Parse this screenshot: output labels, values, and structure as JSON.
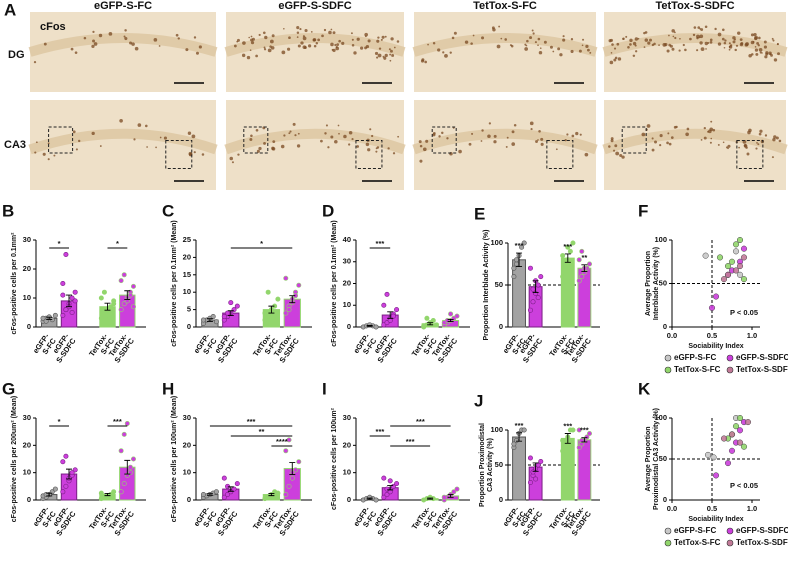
{
  "figure": {
    "panel": "A",
    "columns": [
      "eGFP-S-FC",
      "eGFP-S-SDFC",
      "TetTox-S-FC",
      "TetTox-S-SDFC"
    ],
    "rows": [
      "DG",
      "CA3"
    ],
    "stain": "cFos"
  },
  "chart_data": [
    {
      "type": "bar",
      "panel": "B",
      "ylabel": "cFos-positive cells per 0.1mm²",
      "categories": [
        "eGFP-\nS-FC",
        "eGFP-\nS-SDFC",
        "TetTox-\nS-FC",
        "TetTox-\nS-SDFC"
      ],
      "colors": [
        "#a3a3a3",
        "#cc3fdc",
        "#92d66c",
        "#cc3fdc"
      ],
      "edge_colors": [
        "#555555",
        "#7a1f85",
        "#92d66c",
        "#92d66c"
      ],
      "values": [
        3,
        9,
        7,
        11
      ],
      "errors": [
        0.4,
        2,
        1.2,
        1.5
      ],
      "points": [
        [
          2,
          3,
          3.5,
          2.5,
          4,
          3,
          2
        ],
        [
          4,
          6,
          8,
          10,
          12,
          15,
          25,
          7,
          5,
          9,
          11,
          6
        ],
        [
          3,
          5,
          6,
          7,
          8,
          10,
          12,
          4,
          6,
          9
        ],
        [
          6,
          8,
          10,
          12,
          14,
          16,
          18,
          9,
          11,
          7
        ]
      ],
      "ylim": [
        0,
        30
      ],
      "yticks": [
        0,
        10,
        20,
        30
      ],
      "significance": [
        {
          "pair": [
            0,
            1
          ],
          "label": "*"
        },
        {
          "pair": [
            2,
            3
          ],
          "label": "*"
        }
      ]
    },
    {
      "type": "bar",
      "panel": "C",
      "ylabel": "cFos-positive cells per 0.1mm² (Mean)",
      "categories": [
        "eGFP-\nS-FC",
        "eGFP-\nS-SDFC",
        "TetTox-\nS-FC",
        "TetTox-\nS-SDFC"
      ],
      "colors": [
        "#a3a3a3",
        "#cc3fdc",
        "#92d66c",
        "#cc3fdc"
      ],
      "edge_colors": [
        "#555555",
        "#7a1f85",
        "#92d66c",
        "#92d66c"
      ],
      "values": [
        2,
        4,
        5,
        8
      ],
      "errors": [
        0.4,
        0.7,
        1,
        1
      ],
      "points": [
        [
          1,
          2,
          2.5,
          3,
          1.5,
          2
        ],
        [
          2,
          3,
          4,
          5,
          6,
          3,
          4,
          7
        ],
        [
          2,
          3,
          5,
          6,
          8,
          4,
          10
        ],
        [
          4,
          6,
          8,
          10,
          12,
          14,
          5,
          7,
          9
        ]
      ],
      "ylim": [
        0,
        25
      ],
      "yticks": [
        0,
        5,
        10,
        15,
        20,
        25
      ],
      "significance": [
        {
          "pair": [
            1,
            3
          ],
          "label": "*"
        }
      ]
    },
    {
      "type": "bar",
      "panel": "D",
      "ylabel": "cFos-positive cells per 0.1mm² (Mean)",
      "categories": [
        "eGFP-\nS-FC",
        "eGFP-\nS-SDFC",
        "TetTox-\nS-FC",
        "TetTox-\nS-SDFC"
      ],
      "colors": [
        "#a3a3a3",
        "#cc3fdc",
        "#92d66c",
        "#cc3fdc"
      ],
      "edge_colors": [
        "#555555",
        "#7a1f85",
        "#92d66c",
        "#92d66c"
      ],
      "values": [
        0.5,
        5.5,
        1.5,
        3
      ],
      "errors": [
        0.2,
        1.5,
        0.5,
        0.5
      ],
      "points": [
        [
          0,
          0.5,
          1,
          0.5,
          0
        ],
        [
          1,
          2,
          4,
          6,
          8,
          10,
          15,
          3,
          5
        ],
        [
          0,
          1,
          2,
          3,
          1,
          0.5,
          4
        ],
        [
          1,
          2,
          3,
          4,
          5,
          2,
          3,
          6
        ]
      ],
      "ylim": [
        0,
        40
      ],
      "yticks": [
        0,
        10,
        20,
        30,
        40
      ],
      "significance": [
        {
          "pair": [
            0,
            1
          ],
          "label": "***"
        }
      ]
    },
    {
      "type": "bar",
      "panel": "E",
      "ylabel": "Proportion Interblade Activity (%)",
      "categories": [
        "eGFP-\nS-FC",
        "eGFP-\nS-SDFC",
        "TetTox-\nS-FC",
        "TetTox-\nS-SDFC"
      ],
      "colors": [
        "#a3a3a3",
        "#cc3fdc",
        "#92d66c",
        "#cc3fdc"
      ],
      "edge_colors": [
        "#555555",
        "#7a1f85",
        "#92d66c",
        "#92d66c"
      ],
      "values": [
        80,
        48,
        82,
        70
      ],
      "errors": [
        8,
        7,
        5,
        4
      ],
      "points": [
        [
          60,
          75,
          85,
          95,
          100,
          70,
          80
        ],
        [
          20,
          30,
          40,
          50,
          60,
          70,
          45,
          55,
          35
        ],
        [
          60,
          70,
          80,
          90,
          100,
          85,
          75,
          95
        ],
        [
          55,
          60,
          65,
          70,
          75,
          80,
          90,
          70
        ]
      ],
      "ylim": [
        0,
        100
      ],
      "yticks": [
        0,
        50,
        100
      ],
      "hline": 50,
      "star_labels": [
        "***",
        null,
        "***",
        "**"
      ]
    },
    {
      "type": "scatter",
      "panel": "F",
      "ylabel": "Average Proportion\nInterblade Activity (%)",
      "xlabel": "Sociability Index",
      "annotation": "P < 0.05",
      "xlim": [
        0,
        1.1
      ],
      "xticks": [
        {
          "value": 0,
          "label": "0.0"
        },
        {
          "value": 0.5,
          "label": "0.5"
        },
        {
          "value": 1,
          "label": "1.0"
        }
      ],
      "ylim": [
        0,
        100
      ],
      "yticks": [
        0,
        50,
        100
      ],
      "vline": 0.5,
      "hline": 50,
      "series": [
        {
          "name": "eGFP-S-FC",
          "color": "#c8c8c8",
          "x": [
            0.42,
            0.8,
            0.85
          ],
          "y": [
            82,
            87,
            60
          ]
        },
        {
          "name": "eGFP-S-SDFC",
          "color": "#cc3fdc",
          "x": [
            0.5,
            0.55,
            0.7,
            0.75,
            0.85,
            0.9
          ],
          "y": [
            22,
            35,
            60,
            65,
            75,
            90
          ]
        },
        {
          "name": "TetTox-S-FC",
          "color": "#92d66c",
          "x": [
            0.7,
            0.75,
            0.8,
            0.85,
            0.9,
            0.6
          ],
          "y": [
            70,
            75,
            95,
            100,
            55,
            80
          ]
        },
        {
          "name": "TetTox-S-SDFC",
          "color": "#c27a98",
          "x": [
            0.65,
            0.7,
            0.8,
            0.85,
            0.9
          ],
          "y": [
            55,
            60,
            65,
            70,
            80
          ]
        }
      ]
    },
    {
      "type": "bar",
      "panel": "G",
      "ylabel": "cFos-positive cells per 200um² (Mean)",
      "categories": [
        "eGFP-\nS-FC",
        "eGFP-\nS-SDFC",
        "TetTox-\nS-FC",
        "TetTox-\nS-SDFC"
      ],
      "colors": [
        "#a3a3a3",
        "#cc3fdc",
        "#92d66c",
        "#cc3fdc"
      ],
      "edge_colors": [
        "#555555",
        "#7a1f85",
        "#92d66c",
        "#92d66c"
      ],
      "values": [
        2,
        9.5,
        2,
        12
      ],
      "errors": [
        0.5,
        1.8,
        0.4,
        2.5
      ],
      "points": [
        [
          0.5,
          1,
          2,
          3,
          4,
          1.5,
          2
        ],
        [
          3,
          5,
          7,
          9,
          11,
          14,
          16,
          8,
          10
        ],
        [
          0.5,
          1,
          1.5,
          2,
          3,
          2.5
        ],
        [
          3,
          6,
          9,
          12,
          15,
          18,
          24,
          28,
          10
        ]
      ],
      "ylim": [
        0,
        30
      ],
      "yticks": [
        0,
        10,
        20,
        30
      ],
      "significance": [
        {
          "pair": [
            0,
            1
          ],
          "label": "*"
        },
        {
          "pair": [
            2,
            3
          ],
          "label": "***"
        }
      ]
    },
    {
      "type": "bar",
      "panel": "H",
      "ylabel": "cFos-positive cells per 100um² (Mean)",
      "categories": [
        "eGFP-\nS-FC",
        "eGFP-\nS-SDFC",
        "TetTox-\nS-FC",
        "TetTox-\nS-SDFC"
      ],
      "colors": [
        "#a3a3a3",
        "#cc3fdc",
        "#92d66c",
        "#cc3fdc"
      ],
      "edge_colors": [
        "#555555",
        "#7a1f85",
        "#92d66c",
        "#92d66c"
      ],
      "values": [
        2,
        4,
        2,
        11.5
      ],
      "errors": [
        0.3,
        0.8,
        0.4,
        2.2
      ],
      "points": [
        [
          1,
          1.5,
          2,
          2.5,
          3,
          2
        ],
        [
          1,
          2,
          3,
          4,
          6,
          8,
          5
        ],
        [
          0.5,
          1,
          2,
          3,
          2.5
        ],
        [
          2,
          5,
          8,
          11,
          14,
          18,
          22,
          10
        ]
      ],
      "ylim": [
        0,
        30
      ],
      "yticks": [
        0,
        10,
        20,
        30
      ],
      "significance": [
        {
          "pair": [
            0,
            3
          ],
          "label": "***"
        },
        {
          "pair": [
            1,
            3
          ],
          "label": "**"
        },
        {
          "pair": [
            2,
            3
          ],
          "label": "****"
        }
      ]
    },
    {
      "type": "bar",
      "panel": "I",
      "ylabel": "cFos-positive cells per 100um²",
      "categories": [
        "eGFP-\nS-FC",
        "eGFP-\nS-SDFC",
        "TetTox-\nS-FC",
        "TetTox-\nS-SDFC"
      ],
      "colors": [
        "#a3a3a3",
        "#cc3fdc",
        "#92d66c",
        "#cc3fdc"
      ],
      "edge_colors": [
        "#555555",
        "#7a1f85",
        "#92d66c",
        "#92d66c"
      ],
      "values": [
        0.5,
        4.5,
        0.5,
        1.5
      ],
      "errors": [
        0.2,
        0.8,
        0.2,
        0.5
      ],
      "points": [
        [
          0,
          0.5,
          1,
          0.5,
          0
        ],
        [
          1,
          2,
          3,
          5,
          6,
          8,
          4,
          7
        ],
        [
          0,
          0.5,
          1,
          0.5
        ],
        [
          0,
          1,
          2,
          3,
          4,
          1
        ]
      ],
      "ylim": [
        0,
        30
      ],
      "yticks": [
        0,
        10,
        20,
        30
      ],
      "significance": [
        {
          "pair": [
            1,
            3
          ],
          "label": "***"
        },
        {
          "pair": [
            0,
            1
          ],
          "label": "***"
        },
        {
          "pair": [
            1,
            2
          ],
          "label": "***"
        }
      ]
    },
    {
      "type": "bar",
      "panel": "J",
      "ylabel": "Proportion Proximodistal\nCA3 Activity (%)",
      "categories": [
        "eGFP-\nS-FC",
        "eGFP-\nS-SDFC",
        "TetTox-\nS-FC",
        "TetTox-\nS-SDFC"
      ],
      "colors": [
        "#a3a3a3",
        "#cc3fdc",
        "#92d66c",
        "#cc3fdc"
      ],
      "edge_colors": [
        "#555555",
        "#7a1f85",
        "#92d66c",
        "#92d66c"
      ],
      "values": [
        90,
        47,
        88,
        86
      ],
      "errors": [
        6,
        6,
        7,
        3
      ],
      "points": [
        [
          75,
          85,
          95,
          100,
          100,
          80
        ],
        [
          25,
          35,
          45,
          50,
          55,
          60,
          40,
          30
        ],
        [
          70,
          80,
          90,
          100,
          100,
          85
        ],
        [
          75,
          80,
          85,
          90,
          95,
          100,
          85
        ]
      ],
      "ylim": [
        0,
        100
      ],
      "yticks": [
        0,
        50,
        100
      ],
      "hline": 50,
      "star_labels": [
        "***",
        null,
        "***",
        "***"
      ]
    },
    {
      "type": "scatter",
      "panel": "K",
      "ylabel": "Average Proportion\nProximodistal CA3 Activity (%)",
      "xlabel": "Sociability Index",
      "annotation": "P < 0.05",
      "xlim": [
        0,
        1.1
      ],
      "xticks": [
        {
          "value": 0,
          "label": "0.0"
        },
        {
          "value": 0.5,
          "label": "0.5"
        },
        {
          "value": 1,
          "label": "1.0"
        }
      ],
      "ylim": [
        0,
        100
      ],
      "yticks": [
        0,
        50,
        100
      ],
      "vline": 0.5,
      "hline": 50,
      "series": [
        {
          "name": "eGFP-S-FC",
          "color": "#c8c8c8",
          "x": [
            0.45,
            0.52,
            0.8
          ],
          "y": [
            55,
            52,
            100
          ]
        },
        {
          "name": "eGFP-S-SDFC",
          "color": "#cc3fdc",
          "x": [
            0.55,
            0.7,
            0.75,
            0.8,
            0.85,
            0.9
          ],
          "y": [
            30,
            45,
            60,
            70,
            85,
            95
          ]
        },
        {
          "name": "TetTox-S-FC",
          "color": "#92d66c",
          "x": [
            0.7,
            0.75,
            0.8,
            0.85,
            0.9
          ],
          "y": [
            75,
            80,
            90,
            100,
            65
          ]
        },
        {
          "name": "TetTox-S-SDFC",
          "color": "#c27a98",
          "x": [
            0.65,
            0.75,
            0.85,
            0.95
          ],
          "y": [
            75,
            80,
            70,
            95
          ]
        }
      ]
    }
  ]
}
